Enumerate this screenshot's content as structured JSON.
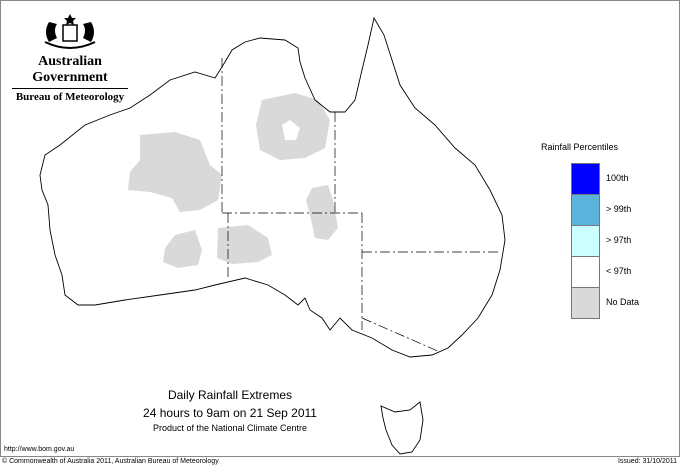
{
  "branding": {
    "government": "Australian Government",
    "agency": "Bureau of Meteorology",
    "logo": "commonwealth-coat-of-arms"
  },
  "legend": {
    "title": "Rainfall Percentiles",
    "items": [
      {
        "label": "100th",
        "color": "#0000ff"
      },
      {
        "label": "> 99th",
        "color": "#5ab4dc"
      },
      {
        "label": "> 97th",
        "color": "#ccffff"
      },
      {
        "label": "< 97th",
        "color": "#ffffff"
      },
      {
        "label": "No Data",
        "color": "#d9d9d9"
      }
    ]
  },
  "map": {
    "region": "Australia",
    "features": [
      "state-boundaries",
      "no-data-areas"
    ]
  },
  "caption": {
    "title": "Daily Rainfall Extremes",
    "period": "24 hours to 9am on 21 Sep 2011",
    "product": "Product of the National Climate Centre"
  },
  "footer": {
    "url": "http://www.bom.gov.au",
    "copyright": "© Commonwealth of Australia 2011, Australian Bureau of Meteorology",
    "issued": "Issued: 31/10/2011"
  }
}
